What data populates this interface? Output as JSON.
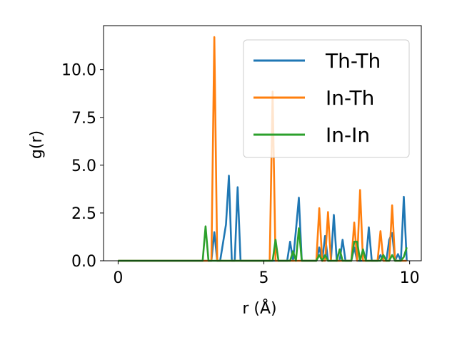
{
  "chart_data": {
    "type": "line",
    "title": "",
    "xlabel": "r (Å)",
    "ylabel": "g(r)",
    "xlim": [
      -0.5,
      10.4
    ],
    "ylim": [
      0,
      12.3
    ],
    "xticks": [
      0,
      5,
      10
    ],
    "xtick_labels": [
      "0",
      "5",
      "10"
    ],
    "yticks": [
      0,
      2.5,
      5,
      7.5,
      10
    ],
    "ytick_labels": [
      "0.0",
      "2.5",
      "5.0",
      "7.5",
      "10.0"
    ],
    "grid": false,
    "legend_position": "top-right",
    "series": [
      {
        "name": "Th-Th",
        "color": "#1f77b4",
        "x": [
          0,
          3.1,
          3.2,
          3.3,
          3.4,
          3.5,
          3.7,
          3.8,
          3.9,
          4.0,
          4.1,
          4.2,
          5.2,
          5.3,
          5.4,
          5.5,
          5.6,
          5.7,
          5.8,
          5.9,
          6.0,
          6.1,
          6.2,
          6.3,
          6.4,
          6.6,
          6.7,
          6.8,
          6.9,
          7.0,
          7.1,
          7.2,
          7.3,
          7.4,
          7.5,
          7.6,
          7.7,
          7.8,
          7.9,
          8.0,
          8.1,
          8.2,
          8.3,
          8.4,
          8.5,
          8.6,
          8.7,
          8.8,
          8.9,
          9.0,
          9.1,
          9.2,
          9.3,
          9.4,
          9.5,
          9.6,
          9.7,
          9.8,
          9.9
        ],
        "y": [
          0,
          0,
          0,
          1.5,
          0,
          0,
          1.9,
          4.45,
          0,
          0,
          3.85,
          0,
          0,
          0,
          0,
          0,
          0,
          0,
          0,
          1.0,
          0,
          1.6,
          3.3,
          0,
          0,
          0,
          0,
          0,
          0.7,
          0,
          1.3,
          0,
          0,
          2.4,
          0,
          0,
          1.1,
          0,
          0,
          0,
          0.7,
          0,
          0,
          0,
          0,
          1.75,
          0,
          0,
          0,
          0.3,
          0,
          0,
          1.1,
          1.45,
          0,
          0.35,
          0,
          3.35,
          0
        ]
      },
      {
        "name": "In-Th",
        "color": "#ff7f0e",
        "x": [
          0,
          3.1,
          3.2,
          3.3,
          3.4,
          3.5,
          5.1,
          5.2,
          5.3,
          5.4,
          5.5,
          6.4,
          6.5,
          6.6,
          6.7,
          6.8,
          6.9,
          7.0,
          7.1,
          7.2,
          7.3,
          7.4,
          7.5,
          7.6,
          7.7,
          7.8,
          7.9,
          8.0,
          8.1,
          8.2,
          8.3,
          8.4,
          8.5,
          8.6,
          8.7,
          8.8,
          8.9,
          9.0,
          9.1,
          9.2,
          9.3,
          9.4,
          9.5,
          9.6,
          9.7,
          9.8,
          9.9
        ],
        "y": [
          0,
          0,
          0,
          11.7,
          0,
          0,
          0,
          0,
          8.85,
          0,
          0,
          0,
          0,
          0,
          0,
          0,
          2.75,
          0,
          0,
          2.55,
          0,
          0,
          0,
          0,
          0,
          0,
          0,
          0,
          2.0,
          0,
          3.7,
          0,
          0,
          0,
          0,
          0,
          0,
          1.55,
          0,
          0,
          0,
          2.9,
          0,
          0,
          0,
          0,
          0
        ]
      },
      {
        "name": "In-In",
        "color": "#2ca02c",
        "x": [
          0,
          2.8,
          2.9,
          3.0,
          3.1,
          3.2,
          5.3,
          5.4,
          5.5,
          5.6,
          5.9,
          6.0,
          6.1,
          6.2,
          6.3,
          6.4,
          6.5,
          6.8,
          6.9,
          7.0,
          7.1,
          7.2,
          7.3,
          7.4,
          7.5,
          7.6,
          7.7,
          7.8,
          7.9,
          8.0,
          8.1,
          8.2,
          8.3,
          8.4,
          8.5,
          8.6,
          8.7,
          8.8,
          8.9,
          9.0,
          9.1,
          9.2,
          9.3,
          9.4,
          9.5,
          9.6,
          9.7,
          9.8,
          9.9
        ],
        "y": [
          0,
          0,
          0,
          1.8,
          0,
          0,
          0,
          1.1,
          0,
          0,
          0,
          0.5,
          0,
          1.7,
          0,
          0,
          0,
          0,
          0.3,
          0,
          0.3,
          0,
          0,
          0,
          0,
          0.6,
          0,
          0,
          0,
          0,
          1.0,
          1.0,
          0,
          0.6,
          0,
          0,
          0,
          0,
          0,
          0,
          0.3,
          0,
          0,
          0.3,
          0,
          0,
          0,
          0.2,
          0.7
        ]
      }
    ]
  }
}
